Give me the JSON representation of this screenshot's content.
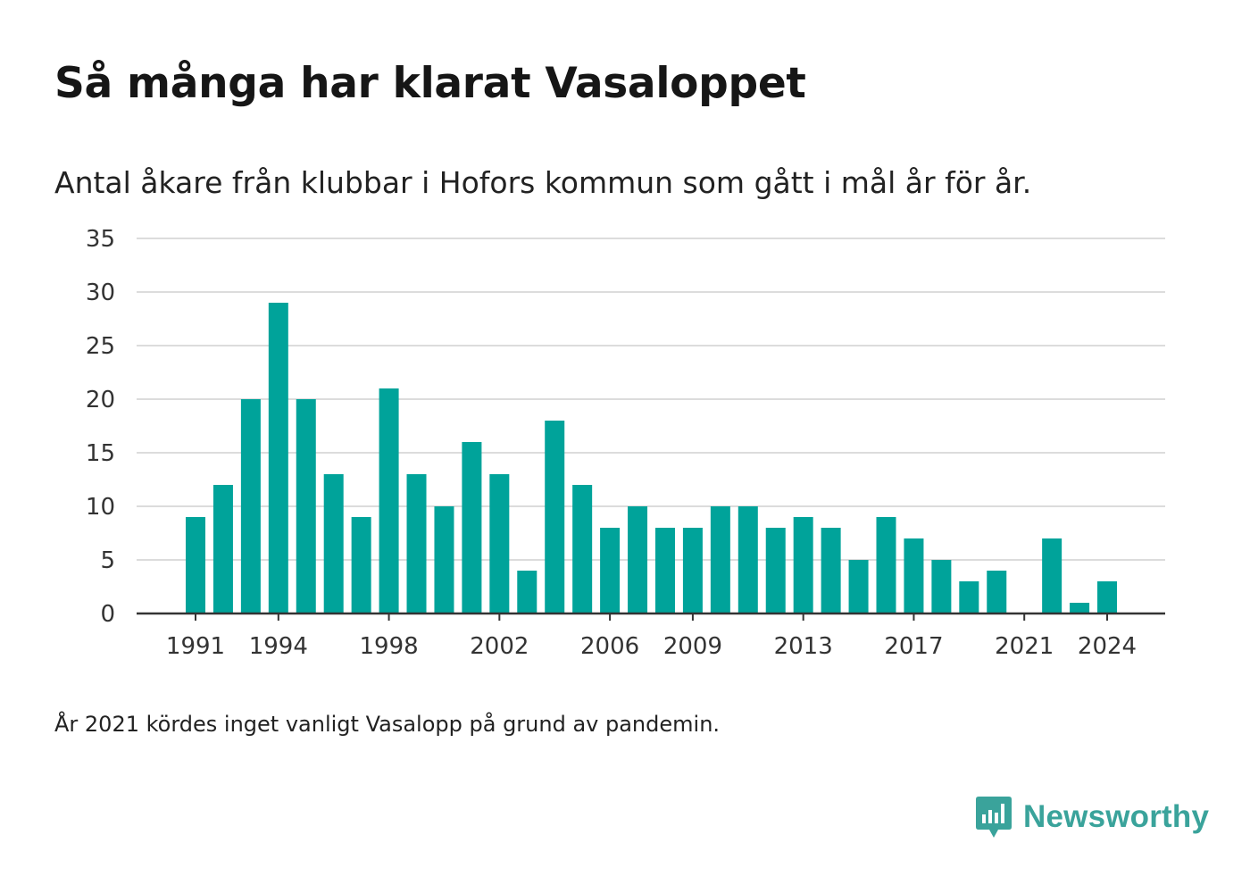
{
  "title": "Så många har klarat Vasaloppet",
  "subtitle": "Antal åkare från klubbar i Hofors kommun som gått i mål år för år.",
  "note": "År 2021 kördes inget vanligt Vasalopp på grund av pandemin.",
  "brand": {
    "name": "Newsworthy",
    "icon": "newsworthy-logo-icon"
  },
  "colors": {
    "bar": "#00a39a",
    "grid": "#dcdcdc",
    "axis": "#333333",
    "brand": "#3aa39b"
  },
  "chart_data": {
    "type": "bar",
    "x": [
      1991,
      1992,
      1993,
      1994,
      1995,
      1996,
      1997,
      1998,
      1999,
      2000,
      2001,
      2002,
      2003,
      2004,
      2005,
      2006,
      2007,
      2008,
      2009,
      2010,
      2011,
      2012,
      2013,
      2014,
      2015,
      2016,
      2017,
      2018,
      2019,
      2020,
      2021,
      2022,
      2023,
      2024
    ],
    "values": [
      9,
      12,
      20,
      29,
      20,
      13,
      9,
      21,
      13,
      10,
      16,
      13,
      4,
      18,
      12,
      8,
      10,
      8,
      8,
      10,
      10,
      8,
      9,
      8,
      5,
      9,
      7,
      5,
      3,
      4,
      null,
      7,
      1,
      3
    ],
    "x_tick_labels": [
      "1991",
      "1994",
      "1998",
      "2002",
      "2006",
      "2009",
      "2013",
      "2017",
      "2021",
      "2024"
    ],
    "y_ticks": [
      0,
      5,
      10,
      15,
      20,
      25,
      30,
      35
    ],
    "ylim": [
      0,
      35
    ],
    "grid": true
  }
}
